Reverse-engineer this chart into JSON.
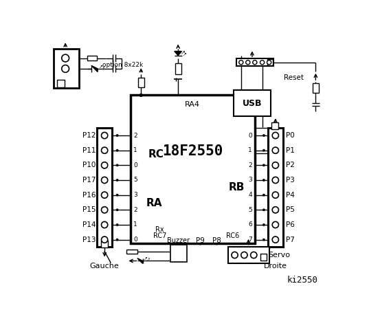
{
  "title": "ki2550",
  "chip_label": "18F2550",
  "chip_sublabel": "RA4",
  "rc_label": "RC",
  "ra_label": "RA",
  "rb_label": "RB",
  "rc_pins": [
    "2",
    "1",
    "0",
    "5",
    "3",
    "2",
    "1",
    "0"
  ],
  "rb_pins": [
    "0",
    "1",
    "2",
    "3",
    "4",
    "5",
    "6",
    "7"
  ],
  "left_labels": [
    "P12",
    "P11",
    "P10",
    "P17",
    "P16",
    "P15",
    "P14",
    "P13"
  ],
  "right_labels": [
    "P0",
    "P1",
    "P2",
    "P3",
    "P4",
    "P5",
    "P6",
    "P7"
  ],
  "gauche_label": "Gauche",
  "droite_label": "Droite",
  "usb_label": "USB",
  "reset_label": "Reset",
  "option_label": "option 8x22k",
  "rx_label": "Rx",
  "rc7_label": "RC7",
  "rc6_label": "RC6",
  "buzzer_label": "Buzzer",
  "p9_label": "P9",
  "p8_label": "P8",
  "servo_label": "Servo"
}
